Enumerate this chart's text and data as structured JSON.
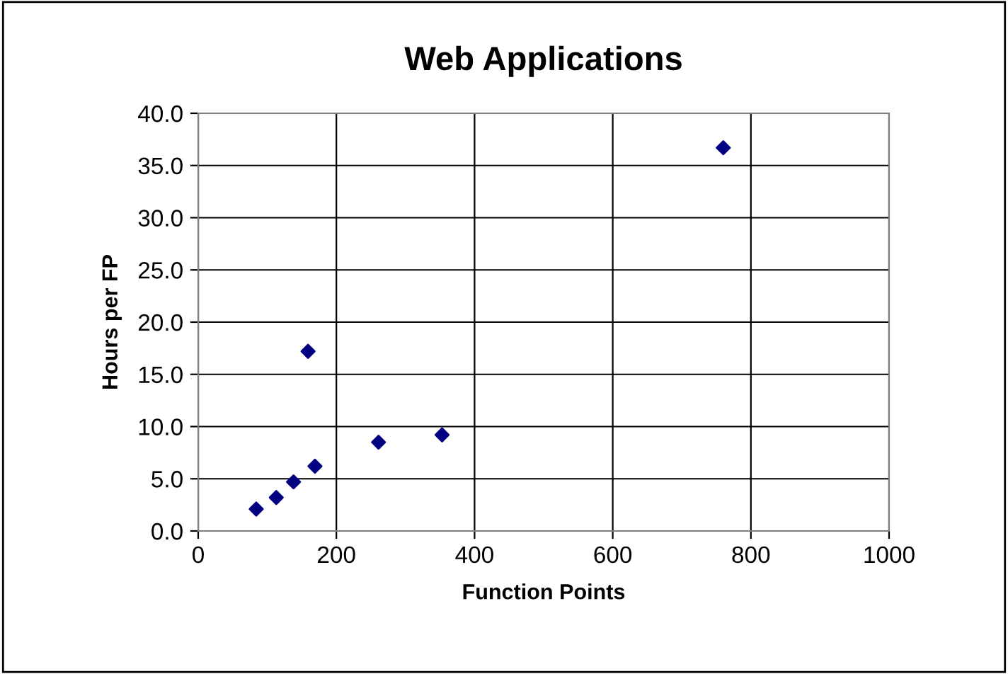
{
  "chart_data": {
    "type": "scatter",
    "title": "Web Applications",
    "xlabel": "Function Points",
    "ylabel": "Hours per FP",
    "x": [
      84,
      113,
      138,
      159,
      169,
      261,
      353,
      760
    ],
    "values": [
      2.1,
      3.2,
      4.7,
      17.2,
      6.2,
      8.5,
      9.2,
      36.7
    ],
    "color": "#000080",
    "marker": "diamond",
    "xlim": [
      0,
      1000
    ],
    "xticks": [
      0,
      200,
      400,
      600,
      800,
      1000
    ],
    "ylim": [
      0,
      40
    ],
    "yticks": [
      {
        "value": 0,
        "label": "0.0"
      },
      {
        "value": 5,
        "label": "5.0"
      },
      {
        "value": 10,
        "label": "10.0"
      },
      {
        "value": 15,
        "label": "15.0"
      },
      {
        "value": 20,
        "label": "20.0"
      },
      {
        "value": 25,
        "label": "25.0"
      },
      {
        "value": 30,
        "label": "30.0"
      },
      {
        "value": 35,
        "label": "35.0"
      },
      {
        "value": 40,
        "label": "40.0"
      }
    ],
    "grid": true,
    "legend": false
  }
}
